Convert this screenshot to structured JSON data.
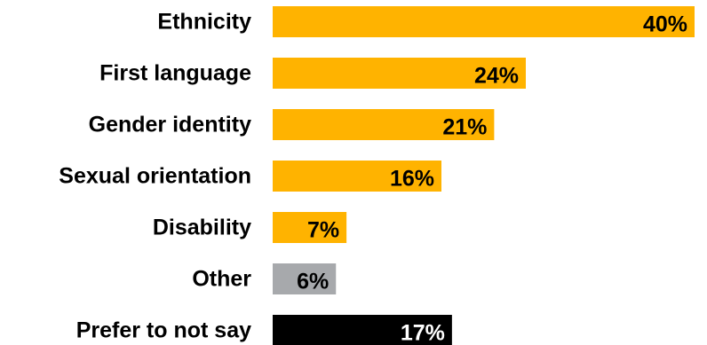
{
  "chart_data": {
    "type": "bar",
    "orientation": "horizontal",
    "categories": [
      "Ethnicity",
      "First language",
      "Gender identity",
      "Sexual orientation",
      "Disability",
      "Other",
      "Prefer to not say"
    ],
    "values": [
      40,
      24,
      21,
      16,
      7,
      6,
      17
    ],
    "value_labels": [
      "40%",
      "24%",
      "21%",
      "16%",
      "7%",
      "6%",
      "17%"
    ],
    "unit": "%",
    "bar_colors": [
      "#ffb300",
      "#ffb300",
      "#ffb300",
      "#ffb300",
      "#ffb300",
      "#a7a9ac",
      "#000000"
    ],
    "label_colors": [
      "#000000",
      "#000000",
      "#000000",
      "#000000",
      "#000000",
      "#000000",
      "#ffffff"
    ],
    "xlim": [
      0,
      40
    ],
    "grid": false,
    "legend": "none"
  }
}
